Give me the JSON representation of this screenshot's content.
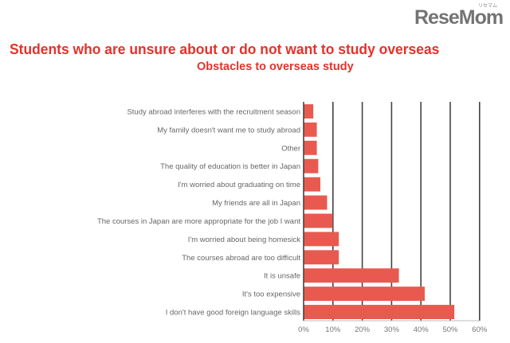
{
  "chart_data": {
    "type": "bar",
    "orientation": "horizontal",
    "title": "Students who are unsure about or do not want to study overseas",
    "subtitle": "Obstacles to overseas study",
    "categories": [
      "Study abroad interferes with the recruitment season",
      "My family doesn't want me to study abroad",
      "Other",
      "The quality of education is better in Japan",
      "I'm worried about graduating on time",
      "My friends are all in Japan",
      "The courses in Japan are more appropriate for the job I want",
      "I'm worried about being homesick",
      "The courses abroad are too difficult",
      "It is unsafe",
      "It's too expensive",
      "I don't have good foreign language skills"
    ],
    "values": [
      3.3,
      4.5,
      4.5,
      5.0,
      5.7,
      8.0,
      9.9,
      12.0,
      12.0,
      32.5,
      41.3,
      51.4
    ],
    "xlabel": "",
    "ylabel": "",
    "xlim": [
      0,
      60
    ],
    "xticks": [
      "0%",
      "10%",
      "20%",
      "30%",
      "40%",
      "50%",
      "60%"
    ],
    "grid": true,
    "bar_color": "#e85a4f"
  },
  "watermark": {
    "brand": "ReseMom",
    "sub": "リセマム"
  }
}
